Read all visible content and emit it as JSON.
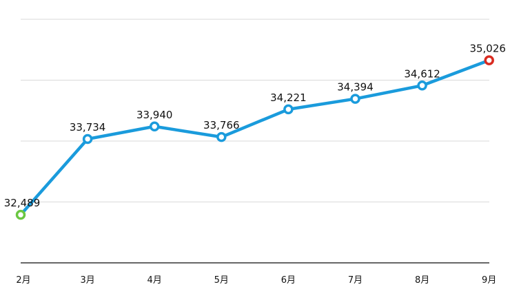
{
  "chart_data": {
    "type": "line",
    "title": "",
    "xlabel": "",
    "ylabel": "",
    "categories": [
      "2月",
      "3月",
      "4月",
      "5月",
      "6月",
      "7月",
      "8月",
      "9月"
    ],
    "series": [
      {
        "values": [
          32489,
          33734,
          33940,
          33766,
          34221,
          34394,
          34612,
          35026
        ],
        "data_labels": [
          "32,489",
          "33,734",
          "33,940",
          "33,766",
          "34,221",
          "34,394",
          "34,612",
          "35,026"
        ]
      }
    ],
    "ylim": [
      31700,
      35700
    ],
    "grid": true,
    "y_tick_labels_shown": false,
    "legend": "none",
    "colors": {
      "line": "#1a9bdc",
      "first_point": "#6bc742",
      "last_point": "#d92b20",
      "grid": "#d9d9d9",
      "axis": "#333333"
    }
  }
}
